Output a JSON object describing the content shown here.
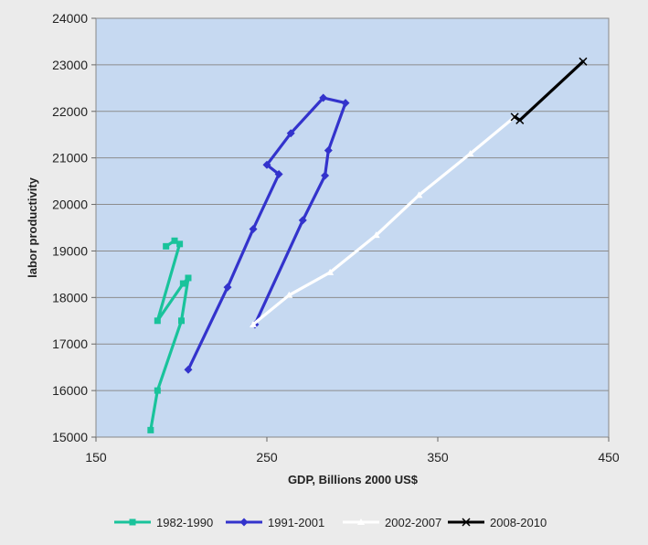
{
  "chart_data": {
    "type": "line",
    "title": "",
    "xlabel": "GDP, Billions 2000 US$",
    "ylabel": "labor productivity",
    "xlim": [
      150,
      450
    ],
    "ylim": [
      15000,
      24000
    ],
    "x_ticks": [
      150,
      250,
      350,
      450
    ],
    "y_ticks": [
      15000,
      16000,
      17000,
      18000,
      19000,
      20000,
      21000,
      22000,
      23000,
      24000
    ],
    "grid": "horizontal",
    "legend_position": "bottom",
    "plot_background": "#c6d9f1",
    "series": [
      {
        "name": "1982-1990",
        "color": "#19c39b",
        "marker": "square",
        "points": [
          [
            182,
            15150
          ],
          [
            186,
            16000
          ],
          [
            200,
            17500
          ],
          [
            204,
            18420
          ],
          [
            201,
            18300
          ],
          [
            186,
            17500
          ],
          [
            199,
            19150
          ],
          [
            196,
            19220
          ],
          [
            191,
            19100
          ]
        ]
      },
      {
        "name": "1991-2001",
        "color": "#3333cc",
        "marker": "diamond",
        "points": [
          [
            204,
            16450
          ],
          [
            227,
            18220
          ],
          [
            242,
            19470
          ],
          [
            257,
            20650
          ],
          [
            250,
            20850
          ],
          [
            264,
            21530
          ],
          [
            283,
            22290
          ],
          [
            296,
            22180
          ],
          [
            286,
            21160
          ],
          [
            284,
            20620
          ],
          [
            271,
            19660
          ],
          [
            243,
            17420
          ]
        ]
      },
      {
        "name": "2002-2007",
        "color": "#ffffff",
        "marker": "triangle",
        "points": [
          [
            242,
            17420
          ],
          [
            263,
            18050
          ],
          [
            287,
            18540
          ],
          [
            314,
            19340
          ],
          [
            339,
            20200
          ],
          [
            369,
            21090
          ],
          [
            395,
            21880
          ]
        ]
      },
      {
        "name": "2008-2010",
        "color": "#000000",
        "marker": "x",
        "points": [
          [
            395,
            21880
          ],
          [
            398,
            21810
          ],
          [
            435,
            23070
          ]
        ]
      }
    ]
  }
}
